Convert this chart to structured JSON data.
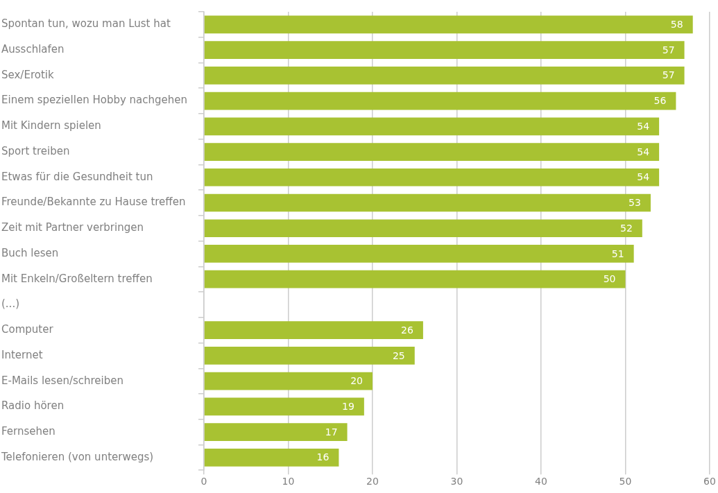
{
  "chart_data": {
    "type": "bar",
    "orientation": "horizontal",
    "categories": [
      "Spontan tun, wozu man Lust hat",
      "Ausschlafen",
      "Sex/Erotik",
      "Einem speziellen Hobby nachgehen",
      "Mit Kindern spielen",
      "Sport treiben",
      "Etwas für die Gesundheit tun",
      "Freunde/Bekannte zu Hause treffen",
      "Zeit mit Partner verbringen",
      "Buch lesen",
      "Mit Enkeln/Großeltern treffen",
      "(...)",
      "Computer",
      "Internet",
      "E-Mails lesen/schreiben",
      "Radio hören",
      "Fernsehen",
      "Telefonieren (von unterwegs)"
    ],
    "values": [
      58,
      57,
      57,
      56,
      54,
      54,
      54,
      53,
      52,
      51,
      50,
      null,
      26,
      25,
      20,
      19,
      17,
      16
    ],
    "color": "#a8c232",
    "xlim": [
      0,
      60
    ],
    "xticks": [
      0,
      10,
      20,
      30,
      40,
      50,
      60
    ],
    "grid": "x",
    "legend": false,
    "data_labels": true
  }
}
